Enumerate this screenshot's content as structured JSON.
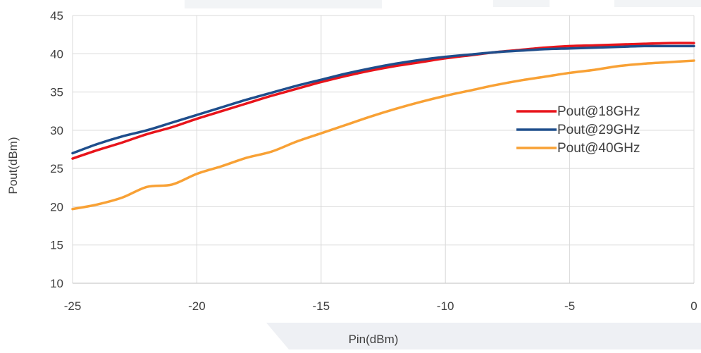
{
  "chart_data": {
    "type": "line",
    "title": "",
    "xlabel": "Pin(dBm)",
    "ylabel": "Pout(dBm)",
    "xlim": [
      -25,
      0
    ],
    "ylim": [
      10,
      45
    ],
    "xticks": [
      -25,
      -20,
      -15,
      -10,
      -5,
      0
    ],
    "yticks": [
      10,
      15,
      20,
      25,
      30,
      35,
      40,
      45
    ],
    "grid": true,
    "legend_position": "right",
    "series": [
      {
        "name": "Pout@18GHz",
        "color": "#e8141b",
        "x": [
          -25,
          -24,
          -23,
          -22,
          -21,
          -20,
          -19,
          -18,
          -17,
          -16,
          -15,
          -14,
          -13,
          -12,
          -11,
          -10,
          -9,
          -8,
          -7,
          -6,
          -5,
          -4,
          -3,
          -2,
          -1,
          0
        ],
        "y": [
          26.3,
          27.4,
          28.4,
          29.5,
          30.4,
          31.5,
          32.5,
          33.5,
          34.5,
          35.4,
          36.3,
          37.1,
          37.8,
          38.4,
          38.9,
          39.4,
          39.8,
          40.2,
          40.5,
          40.8,
          41.0,
          41.1,
          41.2,
          41.3,
          41.4,
          41.4
        ]
      },
      {
        "name": "Pout@29GHz",
        "color": "#1f4e8c",
        "x": [
          -25,
          -24,
          -23,
          -22,
          -21,
          -20,
          -19,
          -18,
          -17,
          -16,
          -15,
          -14,
          -13,
          -12,
          -11,
          -10,
          -9,
          -8,
          -7,
          -6,
          -5,
          -4,
          -3,
          -2,
          -1,
          0
        ],
        "y": [
          27.0,
          28.2,
          29.2,
          30.0,
          31.0,
          32.0,
          33.0,
          34.0,
          34.9,
          35.8,
          36.6,
          37.4,
          38.1,
          38.7,
          39.2,
          39.6,
          39.9,
          40.2,
          40.4,
          40.6,
          40.7,
          40.8,
          40.9,
          41.0,
          41.0,
          41.0
        ]
      },
      {
        "name": "Pout@40GHz",
        "color": "#f8a135",
        "x": [
          -25,
          -24,
          -23,
          -22,
          -21,
          -20,
          -19,
          -18,
          -17,
          -16,
          -15,
          -14,
          -13,
          -12,
          -11,
          -10,
          -9,
          -8,
          -7,
          -6,
          -5,
          -4,
          -3,
          -2,
          -1,
          0
        ],
        "y": [
          19.7,
          20.3,
          21.2,
          22.6,
          22.9,
          24.3,
          25.3,
          26.4,
          27.2,
          28.5,
          29.6,
          30.7,
          31.8,
          32.8,
          33.7,
          34.5,
          35.2,
          35.9,
          36.5,
          37.0,
          37.5,
          37.9,
          38.4,
          38.7,
          38.9,
          39.1
        ]
      }
    ]
  }
}
